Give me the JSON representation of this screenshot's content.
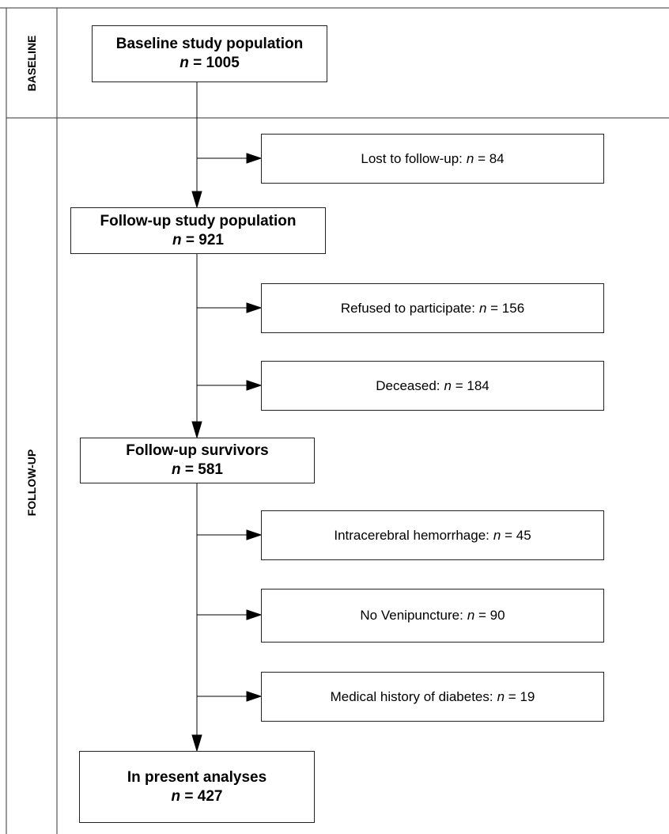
{
  "sections": [
    {
      "label": "BASELINE"
    },
    {
      "label": "FOLLOW-UP"
    }
  ],
  "main_boxes": [
    {
      "title": "Baseline study population",
      "count": "n = 1005"
    },
    {
      "title": "Follow-up study population",
      "count": "n = 921"
    },
    {
      "title": "Follow-up survivors",
      "count": "n = 581"
    },
    {
      "title": "In present analyses",
      "count": "n = 427"
    }
  ],
  "exclusions": [
    {
      "label": "Lost to follow-up:",
      "count": "n = 84"
    },
    {
      "label": "Refused to participate:",
      "count": "n = 156"
    },
    {
      "label": "Deceased:",
      "count": "n = 184"
    },
    {
      "label": "Intracerebral hemorrhage:",
      "count": "n = 45"
    },
    {
      "label": "No Venipuncture:",
      "count": "n = 90"
    },
    {
      "label": "Medical history of diabetes:",
      "count": "n = 19"
    }
  ]
}
